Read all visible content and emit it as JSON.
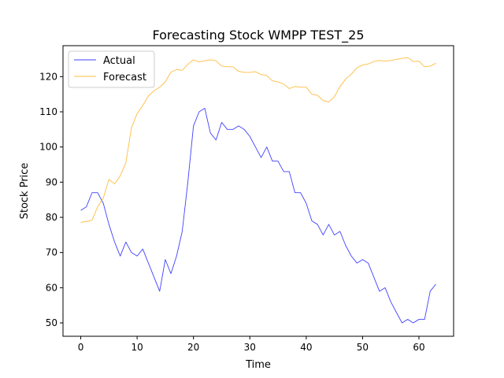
{
  "chart_data": {
    "type": "line",
    "title": "Forecasting Stock WMPP TEST_25",
    "xlabel": "Time",
    "ylabel": "Stock Price",
    "xlim": [
      -3.15,
      66.15
    ],
    "ylim": [
      46.2,
      128.8
    ],
    "xticks": [
      0,
      10,
      20,
      30,
      40,
      50,
      60
    ],
    "yticks": [
      50,
      60,
      70,
      80,
      90,
      100,
      110,
      120
    ],
    "grid": false,
    "legend_position": "top-left",
    "series": [
      {
        "name": "Actual",
        "color": "#0000ff",
        "x": [
          0,
          1,
          2,
          3,
          4,
          5,
          6,
          7,
          8,
          9,
          10,
          11,
          12,
          13,
          14,
          15,
          16,
          17,
          18,
          19,
          20,
          21,
          22,
          23,
          24,
          25,
          26,
          27,
          28,
          29,
          30,
          31,
          32,
          33,
          34,
          35,
          36,
          37,
          38,
          39,
          40,
          41,
          42,
          43,
          44,
          45,
          46,
          47,
          48,
          49,
          50,
          51,
          52,
          53,
          54,
          55,
          56,
          57,
          58,
          59,
          60,
          61,
          62,
          63
        ],
        "values": [
          82,
          83,
          87,
          87,
          84,
          78,
          73,
          69,
          73,
          70,
          69,
          71,
          67,
          63,
          59,
          68,
          64,
          69,
          76,
          90,
          106,
          110,
          111,
          104,
          102,
          107,
          105,
          105,
          106,
          105,
          103,
          100,
          97,
          100,
          96,
          96,
          93,
          93,
          87,
          87,
          84,
          79,
          78,
          75,
          78,
          75,
          76,
          72,
          69,
          67,
          68,
          67,
          63,
          59,
          60,
          56,
          53,
          50,
          51,
          50,
          51,
          51,
          59,
          61
        ]
      },
      {
        "name": "Forecast",
        "color": "#ffa500",
        "x": [
          0,
          1,
          2,
          3,
          4,
          5,
          6,
          7,
          8,
          9,
          10,
          11,
          12,
          13,
          14,
          15,
          16,
          17,
          18,
          19,
          20,
          21,
          22,
          23,
          24,
          25,
          26,
          27,
          28,
          29,
          30,
          31,
          32,
          33,
          34,
          35,
          36,
          37,
          38,
          39,
          40,
          41,
          42,
          43,
          44,
          45,
          46,
          47,
          48,
          49,
          50,
          51,
          52,
          53,
          54,
          55,
          56,
          57,
          58,
          59,
          60,
          61,
          62,
          63
        ],
        "values": [
          78.6,
          78.8,
          79.2,
          83,
          85.5,
          90.8,
          89.5,
          91.8,
          95.5,
          105.5,
          109.5,
          111.8,
          114.5,
          116,
          117,
          118.5,
          121.3,
          122,
          121.8,
          123.5,
          124.8,
          124.2,
          124.5,
          124.8,
          124.5,
          123,
          122.8,
          122.8,
          121.5,
          121.2,
          121.2,
          121.4,
          120.6,
          120.3,
          118.8,
          118.5,
          117.9,
          116.6,
          117.2,
          117,
          117,
          115,
          114.7,
          113.2,
          112.8,
          114.3,
          117.2,
          119.3,
          120.7,
          122.5,
          123.3,
          123.6,
          124.3,
          124.6,
          124.4,
          124.6,
          124.9,
          125.2,
          125.4,
          124.3,
          124.4,
          122.8,
          123,
          123.8
        ]
      }
    ]
  }
}
